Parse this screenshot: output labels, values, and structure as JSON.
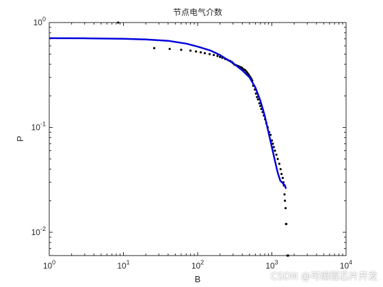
{
  "chart_data": {
    "type": "scatter",
    "title": "节点电气介数",
    "xlabel": "B",
    "ylabel": "P",
    "x_scale": "log",
    "y_scale": "log",
    "xlim": [
      1,
      10000
    ],
    "ylim": [
      0.006,
      1
    ],
    "x_ticks": [
      {
        "value": 1,
        "base": "10",
        "exp": "0"
      },
      {
        "value": 10,
        "base": "10",
        "exp": "1"
      },
      {
        "value": 100,
        "base": "10",
        "exp": "2"
      },
      {
        "value": 1000,
        "base": "10",
        "exp": "3"
      },
      {
        "value": 10000,
        "base": "10",
        "exp": "4"
      }
    ],
    "y_ticks": [
      {
        "value": 0.01,
        "base": "10",
        "exp": "-2"
      },
      {
        "value": 0.1,
        "base": "10",
        "exp": "-1"
      },
      {
        "value": 1,
        "base": "10",
        "exp": "0"
      }
    ],
    "grid": false,
    "series": [
      {
        "type": "scatter",
        "color": "#000000",
        "points": [
          [
            8.5,
            1.0
          ],
          [
            26,
            0.57
          ],
          [
            42,
            0.56
          ],
          [
            60,
            0.55
          ],
          [
            80,
            0.54
          ],
          [
            95,
            0.53
          ],
          [
            110,
            0.52
          ],
          [
            125,
            0.51
          ],
          [
            145,
            0.5
          ],
          [
            165,
            0.49
          ],
          [
            185,
            0.48
          ],
          [
            200,
            0.47
          ],
          [
            215,
            0.46
          ],
          [
            235,
            0.45
          ],
          [
            255,
            0.44
          ],
          [
            275,
            0.43
          ],
          [
            290,
            0.42
          ],
          [
            300,
            0.41
          ],
          [
            310,
            0.4
          ],
          [
            320,
            0.395
          ],
          [
            335,
            0.39
          ],
          [
            350,
            0.385
          ],
          [
            365,
            0.38
          ],
          [
            380,
            0.375
          ],
          [
            395,
            0.37
          ],
          [
            410,
            0.36
          ],
          [
            425,
            0.355
          ],
          [
            440,
            0.35
          ],
          [
            455,
            0.34
          ],
          [
            470,
            0.33
          ],
          [
            485,
            0.32
          ],
          [
            500,
            0.31
          ],
          [
            515,
            0.3
          ],
          [
            530,
            0.29
          ],
          [
            545,
            0.28
          ],
          [
            560,
            0.25
          ],
          [
            590,
            0.23
          ],
          [
            610,
            0.21
          ],
          [
            630,
            0.195
          ],
          [
            650,
            0.185
          ],
          [
            680,
            0.17
          ],
          [
            700,
            0.16
          ],
          [
            720,
            0.15
          ],
          [
            750,
            0.14
          ],
          [
            780,
            0.13
          ],
          [
            810,
            0.12
          ],
          [
            840,
            0.11
          ],
          [
            880,
            0.1
          ],
          [
            920,
            0.09
          ],
          [
            960,
            0.085
          ],
          [
            1000,
            0.075
          ],
          [
            1030,
            0.07
          ],
          [
            1060,
            0.065
          ],
          [
            1100,
            0.06
          ],
          [
            1150,
            0.055
          ],
          [
            1200,
            0.05
          ],
          [
            1260,
            0.045
          ],
          [
            1310,
            0.04
          ],
          [
            1350,
            0.036
          ],
          [
            1400,
            0.033
          ],
          [
            1430,
            0.03
          ],
          [
            1450,
            0.028
          ],
          [
            1480,
            0.023
          ],
          [
            1500,
            0.02
          ],
          [
            1530,
            0.017
          ],
          [
            1550,
            0.012
          ],
          [
            1570,
            0.012
          ],
          [
            1620,
            0.006
          ],
          [
            1660,
            0.006
          ]
        ]
      },
      {
        "type": "line",
        "color": "#0000dd",
        "points": [
          [
            1,
            0.71
          ],
          [
            3,
            0.708
          ],
          [
            10,
            0.7
          ],
          [
            20,
            0.69
          ],
          [
            40,
            0.67
          ],
          [
            70,
            0.63
          ],
          [
            100,
            0.59
          ],
          [
            150,
            0.54
          ],
          [
            200,
            0.49
          ],
          [
            300,
            0.41
          ],
          [
            400,
            0.35
          ],
          [
            500,
            0.3
          ],
          [
            600,
            0.24
          ],
          [
            700,
            0.18
          ],
          [
            800,
            0.13
          ],
          [
            900,
            0.09
          ],
          [
            1000,
            0.065
          ],
          [
            1100,
            0.048
          ],
          [
            1200,
            0.037
          ],
          [
            1300,
            0.031
          ],
          [
            1400,
            0.0295
          ],
          [
            1500,
            0.028
          ],
          [
            1550,
            0.026
          ]
        ]
      }
    ]
  },
  "watermark": "CSDN @可编程芯片开发"
}
